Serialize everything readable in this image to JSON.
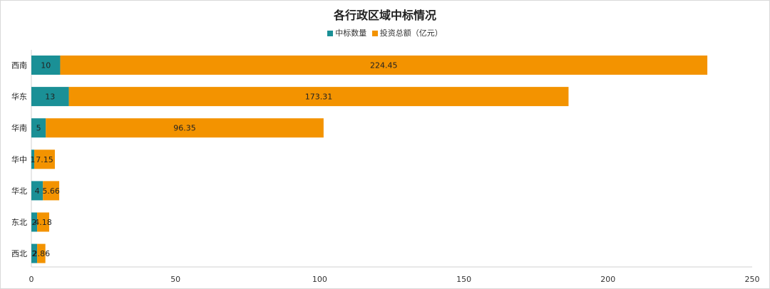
{
  "chart_data": {
    "type": "bar",
    "orientation": "horizontal",
    "stacked": true,
    "title": "各行政区域中标情况",
    "categories": [
      "西南",
      "华东",
      "华南",
      "华中",
      "华北",
      "东北",
      "西北"
    ],
    "series": [
      {
        "name": "中标数量",
        "color": "#1a9096",
        "values": [
          10,
          13,
          5,
          1,
          4,
          2,
          2
        ]
      },
      {
        "name": "投资总额（亿元）",
        "color": "#f39300",
        "values": [
          224.45,
          173.31,
          96.35,
          7.15,
          5.66,
          4.18,
          2.86
        ]
      }
    ],
    "xlim": [
      0,
      250
    ],
    "xticks": [
      0,
      50,
      100,
      150,
      200,
      250
    ],
    "legend_position": "top",
    "grid": false
  }
}
